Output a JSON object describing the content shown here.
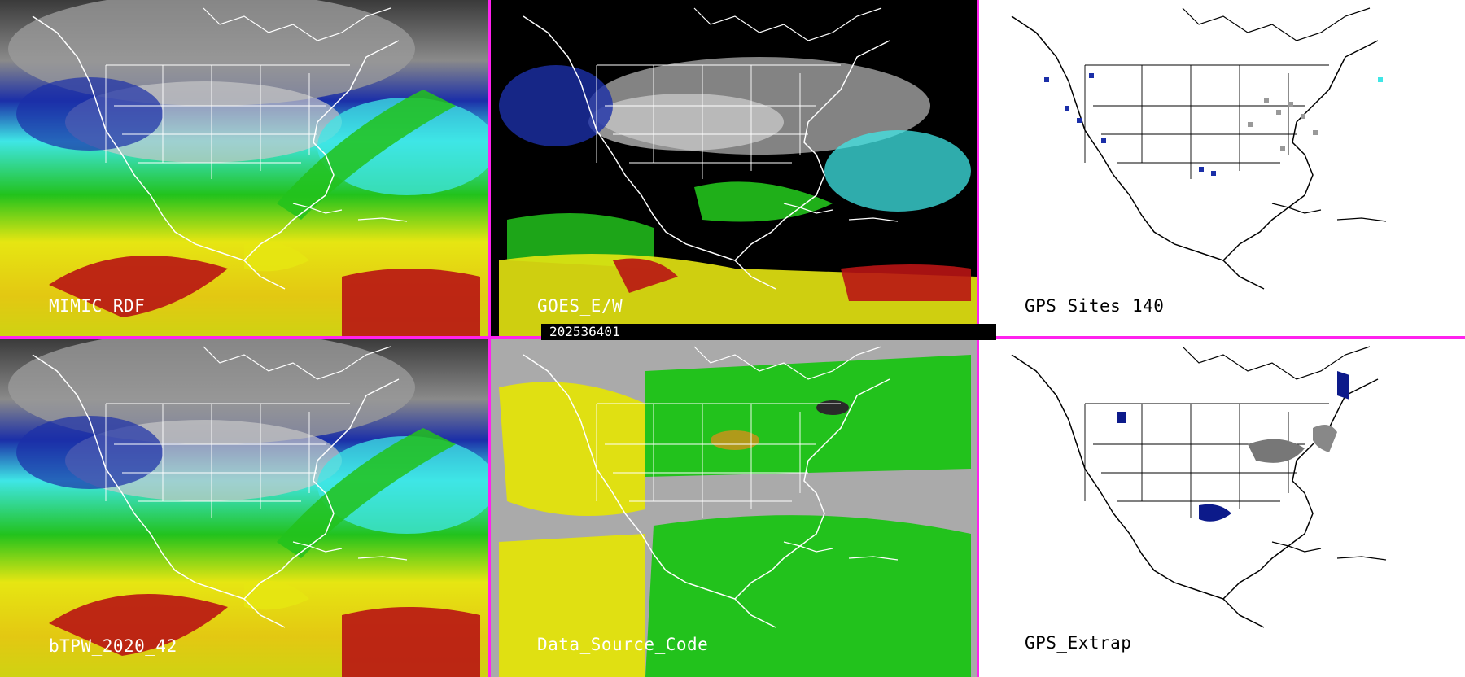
{
  "panels": [
    {
      "id": "mimic",
      "label": "MIMIC RDF"
    },
    {
      "id": "goes",
      "label": "GOES_E/W"
    },
    {
      "id": "gps_sites",
      "label": "GPS Sites",
      "count": "140"
    },
    {
      "id": "btpw",
      "label": "bTPW_2020_42"
    },
    {
      "id": "source",
      "label": "Data_Source_Code"
    },
    {
      "id": "gps_extrap",
      "label": "GPS_Extrap"
    }
  ],
  "timestamp": "202536401",
  "colors": {
    "divider": "#ff22ee",
    "tpw_dry": "#0c1a8a",
    "tpw_low": "#3fe6e6",
    "tpw_mid": "#22c21c",
    "tpw_high": "#e6e612",
    "tpw_max": "#b81414",
    "source_green": "#22c21c",
    "source_yellow": "#e0e012",
    "source_gray": "#aaaaaa"
  }
}
